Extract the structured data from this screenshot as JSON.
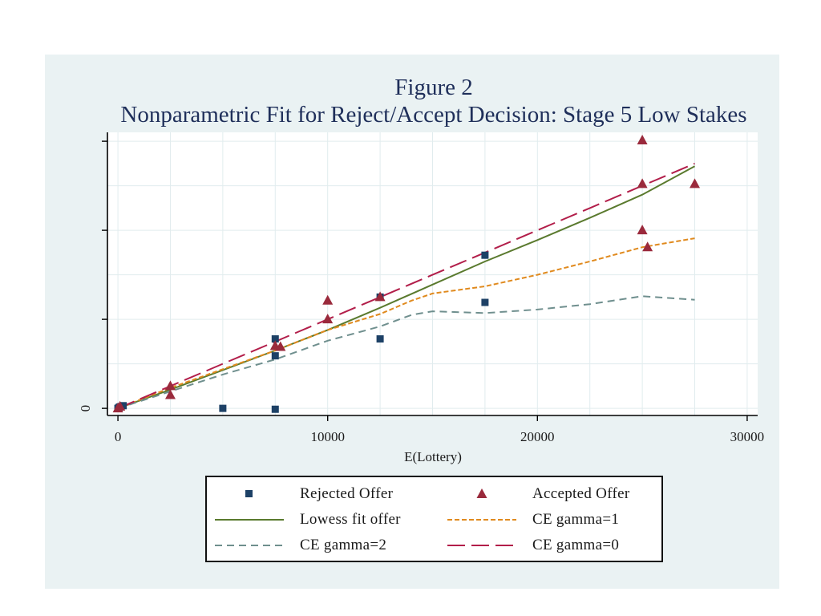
{
  "chart_data": {
    "type": "scatter",
    "title": "Figure 2",
    "subtitle": "Nonparametric Fit for Reject/Accept Decision: Stage 5 Low Stakes",
    "xlabel": "E(Lottery)",
    "ylabel": "",
    "xlim": [
      -500,
      30500
    ],
    "ylim": [
      -400,
      15500
    ],
    "x_ticks": [
      0,
      10000,
      20000,
      30000
    ],
    "x_tick_labels": [
      "0",
      "10000",
      "20000",
      "30000"
    ],
    "y_ticks": [
      0,
      5000,
      10000,
      15000
    ],
    "y_tick_labels": [
      "0",
      "",
      "",
      ""
    ],
    "grid": true,
    "legend_position": "bottom",
    "series": [
      {
        "name": "Rejected Offer",
        "kind": "marker",
        "marker": "square",
        "color": "#1d4166",
        "x": [
          0,
          50,
          100,
          150,
          250,
          5000,
          7500,
          7500,
          7500,
          12500,
          12500,
          17500,
          17500
        ],
        "y": [
          0,
          50,
          80,
          100,
          150,
          0,
          -50,
          3900,
          2950,
          6250,
          3900,
          8600,
          5950
        ]
      },
      {
        "name": "Accepted Offer",
        "kind": "marker",
        "marker": "triangle",
        "color": "#9a2a3c",
        "x": [
          0,
          100,
          2500,
          2500,
          7500,
          7750,
          10000,
          10000,
          12500,
          25000,
          25000,
          25000,
          25250,
          27500
        ],
        "y": [
          0,
          100,
          1250,
          750,
          3500,
          3450,
          6050,
          5000,
          6250,
          15050,
          12600,
          10000,
          9050,
          12600
        ]
      },
      {
        "name": "Lowess fit offer",
        "kind": "line",
        "dash": "solid",
        "color": "#5a7a2e",
        "x": [
          0,
          2500,
          5000,
          7500,
          10000,
          12500,
          15000,
          17500,
          20000,
          22500,
          25000,
          27500
        ],
        "y": [
          0,
          1050,
          2150,
          3250,
          4400,
          5650,
          6950,
          8250,
          9450,
          10700,
          12000,
          13600
        ]
      },
      {
        "name": "CE gamma=1",
        "kind": "line",
        "dash": "short",
        "color": "#e08a1e",
        "x": [
          0,
          2500,
          5000,
          7500,
          10000,
          12500,
          14000,
          15000,
          17500,
          20000,
          22500,
          25000,
          27500
        ],
        "y": [
          0,
          1150,
          2200,
          3250,
          4400,
          5300,
          6050,
          6450,
          6850,
          7500,
          8250,
          9050,
          9550
        ]
      },
      {
        "name": "CE gamma=2",
        "kind": "line",
        "dash": "medium",
        "color": "#6f8f8e",
        "x": [
          0,
          2500,
          5000,
          7500,
          10000,
          12500,
          14000,
          15000,
          17500,
          20000,
          22500,
          25000,
          27500
        ],
        "y": [
          0,
          950,
          1900,
          2750,
          3800,
          4600,
          5250,
          5450,
          5350,
          5550,
          5850,
          6300,
          6100
        ]
      },
      {
        "name": "CE gamma=0",
        "kind": "line",
        "dash": "long",
        "color": "#b21e4a",
        "x": [
          0,
          2500,
          5000,
          7500,
          10000,
          12500,
          15000,
          17500,
          20000,
          22500,
          25000,
          27500
        ],
        "y": [
          0,
          1250,
          2500,
          3750,
          5000,
          6250,
          7500,
          8750,
          10000,
          11250,
          12500,
          13750
        ]
      }
    ]
  }
}
